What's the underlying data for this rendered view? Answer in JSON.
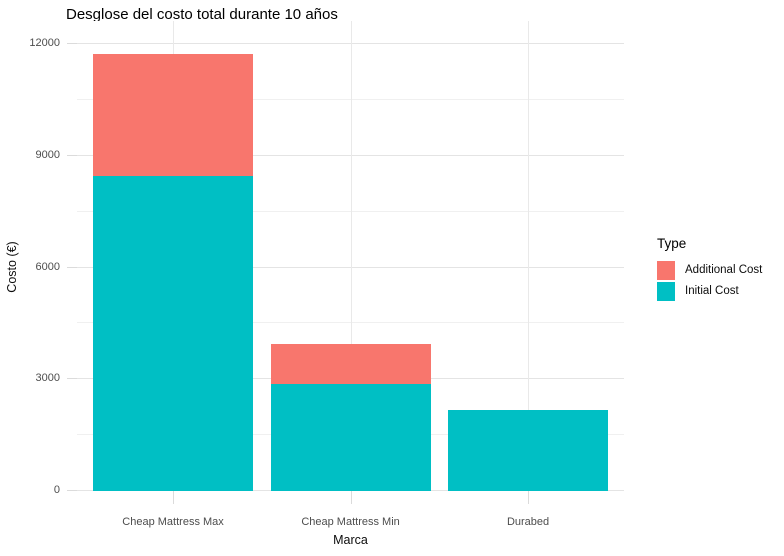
{
  "chart_data": {
    "type": "bar",
    "stacked": true,
    "title": "Desglose del costo total durante 10 años",
    "xlabel": "Marca",
    "ylabel": "Costo (€)",
    "categories": [
      "Cheap Mattress Max",
      "Cheap Mattress Min",
      "Durabed"
    ],
    "series": [
      {
        "name": "Additional Cost",
        "color": "#F8766D",
        "values": [
          3260,
          1050,
          0
        ]
      },
      {
        "name": "Initial Cost",
        "color": "#00BFC4",
        "values": [
          8460,
          2880,
          2160
        ]
      }
    ],
    "ylim": [
      0,
      12000
    ],
    "yticks": [
      0,
      3000,
      6000,
      9000,
      12000
    ],
    "yticks_minor": [
      1500,
      4500,
      7500,
      10500
    ],
    "legend_title": "Type",
    "legend_position": "right",
    "grid": true,
    "background": "#ffffff"
  }
}
